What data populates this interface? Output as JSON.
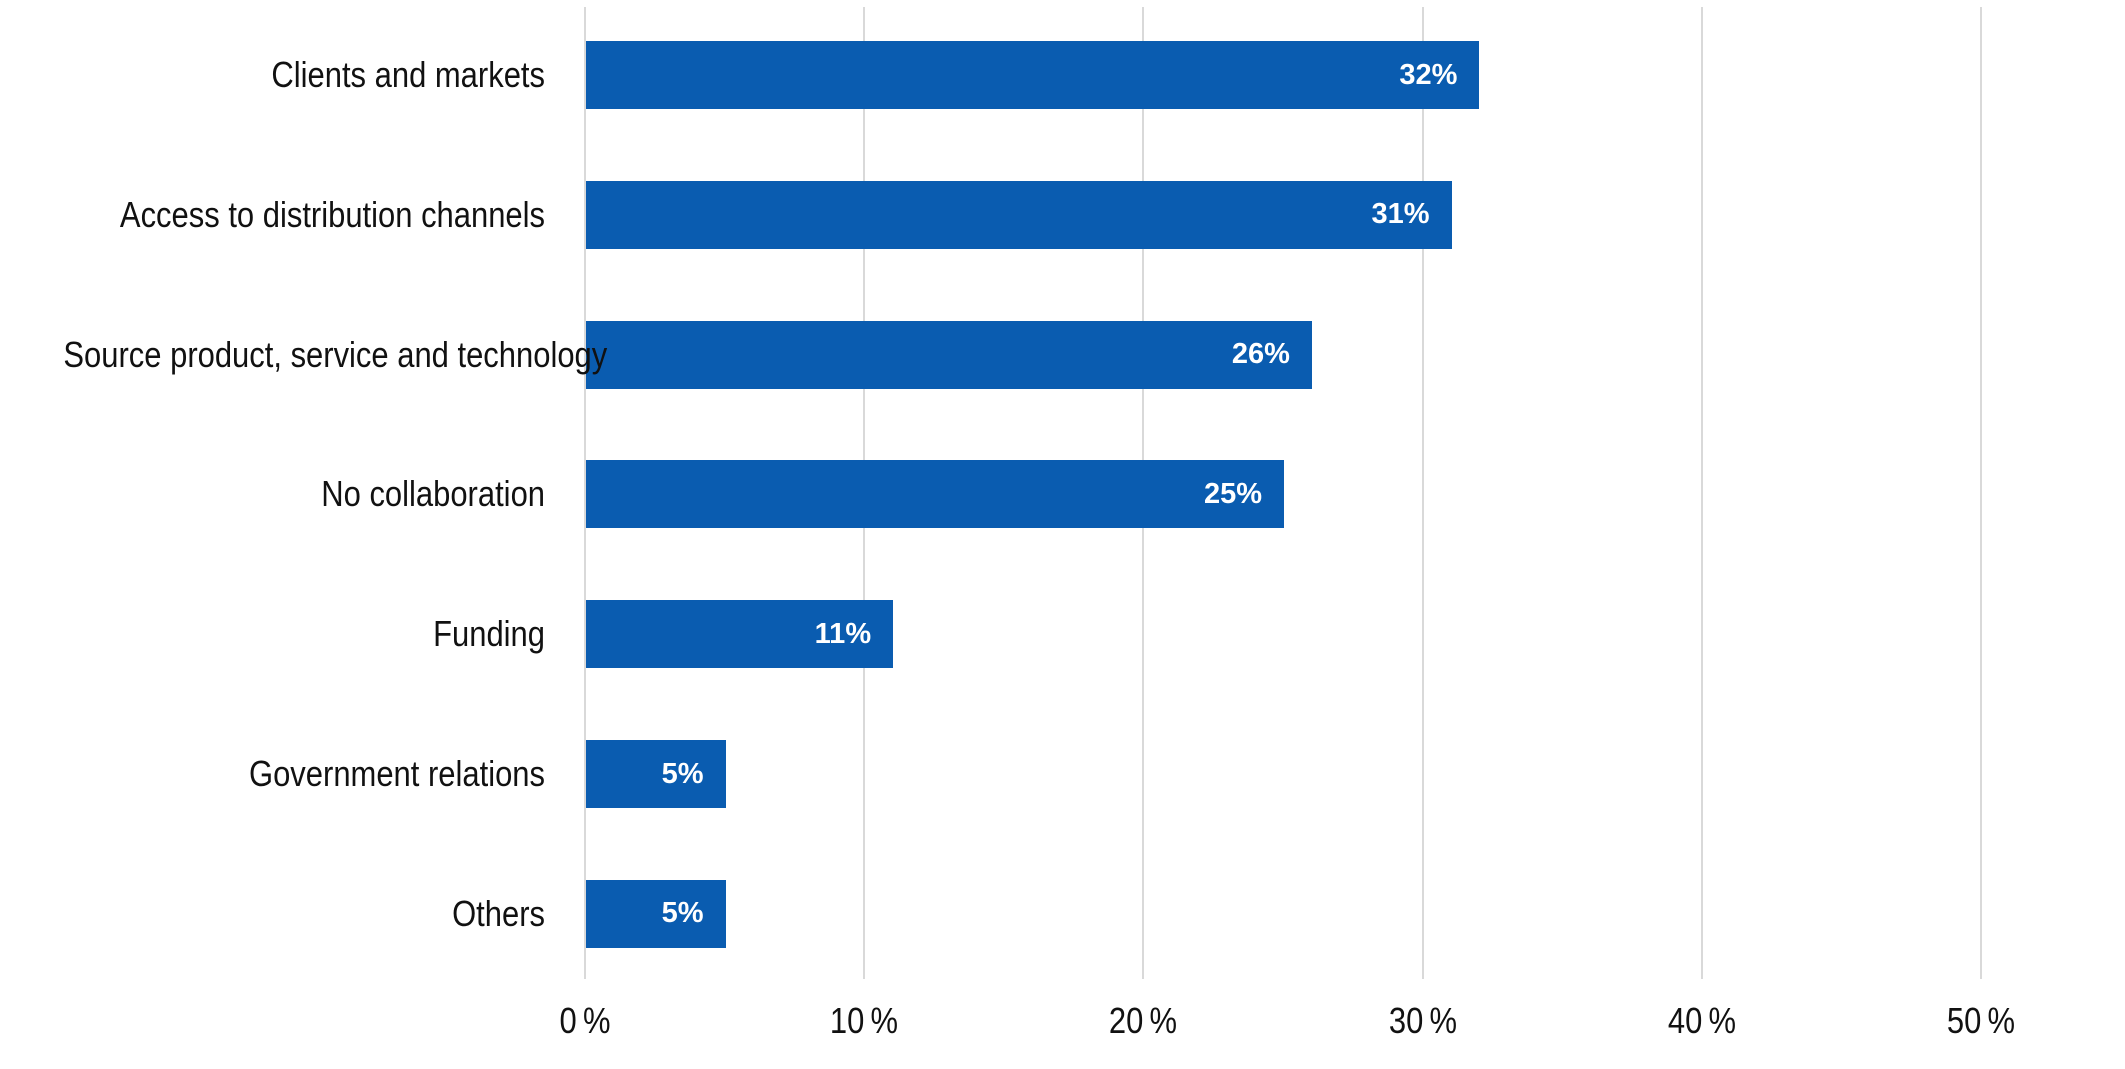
{
  "chart_data": {
    "type": "bar",
    "orientation": "horizontal",
    "title": "",
    "xlabel": "",
    "ylabel": "",
    "categories": [
      "Clients and markets",
      "Access to distribution channels",
      "Source product, service and technology",
      "No collaboration",
      "Funding",
      "Government relations",
      "Others"
    ],
    "values": [
      32,
      31,
      26,
      25,
      11,
      5,
      5
    ],
    "value_labels": [
      "32%",
      "31%",
      "26%",
      "25%",
      "11%",
      "5%",
      "5%"
    ],
    "xlim": [
      0,
      50
    ],
    "x_tick_step": 10,
    "x_tick_values": [
      0,
      10,
      20,
      30,
      40,
      50
    ],
    "x_tick_labels": [
      "0 %",
      "10 %",
      "20 %",
      "30 %",
      "40 %",
      "50 %"
    ],
    "grid": "vertical-only",
    "legend": "none",
    "colors": {
      "bar": "#0a5cb0",
      "gridline": "#d9d9d9",
      "category_label": "#111111",
      "tick_label": "#111111",
      "value_label": "#ffffff",
      "background": "#ffffff"
    }
  }
}
